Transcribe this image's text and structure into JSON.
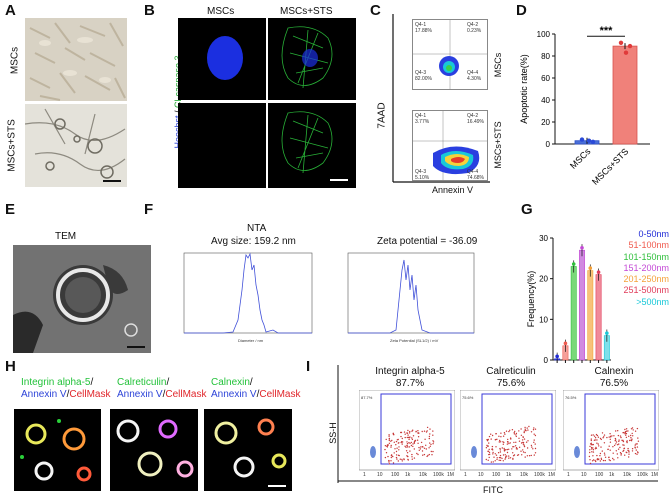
{
  "panel_letters": {
    "A": "A",
    "B": "B",
    "C": "C",
    "D": "D",
    "E": "E",
    "F": "F",
    "G": "G",
    "H": "H",
    "I": "I"
  },
  "panelA": {
    "row_labels": [
      "MSCs",
      "MSCs+STS"
    ]
  },
  "panelB": {
    "col_labels": [
      "MSCs",
      "MSCs+STS"
    ],
    "side_label_blue": "Hoechst",
    "side_label_sep": " / ",
    "side_label_green": "Cl-caspase 3"
  },
  "panelC": {
    "ylabel": "7AAD",
    "xlabel": "Annexin V",
    "row_labels": [
      "MSCs",
      "MSCs+STS"
    ],
    "top": {
      "q1_name": "Q4-1",
      "q1_val": "17.88%",
      "q2_name": "Q4-2",
      "q2_val": "0.23%",
      "q3_name": "Q4-3",
      "q3_val": "82.00%",
      "q4_name": "Q4-4",
      "q4_val": "4.30%"
    },
    "bottom": {
      "q1_name": "Q4-1",
      "q1_val": "3.77%",
      "q2_name": "Q4-2",
      "q2_val": "16.49%",
      "q3_name": "Q4-3",
      "q3_val": "5.10%",
      "q4_name": "Q4-4",
      "q4_val": "74.68%"
    }
  },
  "panelE": {
    "title": "TEM"
  },
  "panelF": {
    "title": "NTA",
    "subtitle": "Avg size: 159.2 nm",
    "zeta_title": "Zeta potential = -36.09"
  },
  "panelG": {
    "legend": [
      {
        "label": "0-50nm",
        "color": "#1f2ad6"
      },
      {
        "label": "51-100nm",
        "color": "#f05a4e"
      },
      {
        "label": "101-150nm",
        "color": "#2fbf3b"
      },
      {
        "label": "151-200nm",
        "color": "#c448d6"
      },
      {
        "label": "201-250nm",
        "color": "#f4a13a"
      },
      {
        "label": "251-500nm",
        "color": "#e03c5a"
      },
      {
        "label": ">500nm",
        "color": "#19c8d8"
      }
    ]
  },
  "panelH": {
    "labels": [
      {
        "l1": "Integrin alpha-5",
        "l1c": "#23c23a"
      },
      {
        "l1": "Calreticulin",
        "l1c": "#23c23a"
      },
      {
        "l1": "Calnexin",
        "l1c": "#23c23a"
      }
    ],
    "annexin": "Annexin V",
    "slash": "/",
    "cellmask": "CellMask"
  },
  "panelI": {
    "ylabel": "SS-H",
    "xlabel": "FITC",
    "plots": [
      {
        "title": "Integrin alpha-5",
        "pct": "87.7%"
      },
      {
        "title": "Calreticulin",
        "pct": "75.6%"
      },
      {
        "title": "Calnexin",
        "pct": "76.5%"
      }
    ],
    "xticks": [
      "1",
      "10",
      "100",
      "1k",
      "10k",
      "100k",
      "1M"
    ],
    "yticks": [
      "0",
      "100k",
      "200k",
      "300k",
      "400k",
      "500k",
      "600k",
      "700k",
      "800k"
    ]
  },
  "chart_data": [
    {
      "type": "bar",
      "title": "",
      "ylabel": "Apoptotic rate(%)",
      "xlabel": "",
      "categories": [
        "MSCs",
        "MSCs+STS"
      ],
      "values": [
        3,
        89
      ],
      "ylim": [
        0,
        100
      ],
      "yticks": [
        "0",
        "20",
        "40",
        "60",
        "80",
        "100"
      ],
      "significance": "***",
      "colors": [
        "#4a6fd8",
        "#f0817a"
      ]
    },
    {
      "type": "bar",
      "title": "",
      "ylabel": "Frequency(%)",
      "xlabel": "",
      "categories": [
        "0-50nm",
        "51-100nm",
        "101-150nm",
        "151-200nm",
        "201-250nm",
        "251-500nm",
        ">500nm"
      ],
      "values": [
        0.3,
        3.5,
        23,
        27,
        22,
        21,
        6
      ],
      "ylim": [
        0,
        30
      ],
      "yticks": [
        "0",
        "10",
        "20",
        "30"
      ]
    }
  ]
}
